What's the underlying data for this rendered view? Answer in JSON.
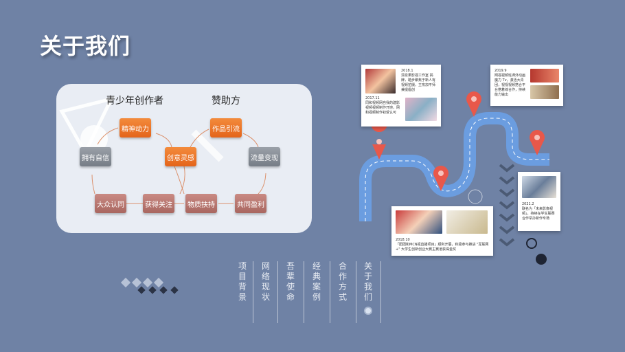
{
  "title": "关于我们",
  "flow": {
    "left_heading": "青少年创作者",
    "right_heading": "赞助方",
    "nodes": {
      "jingshen": "精神动力",
      "yongyou": "拥有自信",
      "chuangyi": "创意灵感",
      "zuopin": "作品引流",
      "liuliang": "流量变现",
      "dazhong": "大众认同",
      "huode": "获得关注",
      "wuzhi": "物质扶持",
      "gongtong": "共同盈利"
    }
  },
  "timeline": {
    "card1": {
      "date_a": "2018.1",
      "text_a": "漂泉果影视工作室 揭牌，踏步聚焦于新人有视频拍摄，主攻加平师兼提倡创",
      "date_b": "2017.11",
      "text_b": "同和视频网自我的建影视频视频制作开辦，网和视频制作初受认可"
    },
    "card2": {
      "date": "2019.9",
      "text": "网视视频班课外动画魔力 Tv，激活大青团，视视视频搭合平台搭着综合作，持续能力输出"
    },
    "card3": {
      "date": "2021.2",
      "text": "联名为「未来影像视频」，持续在学生联赛合作举办新作专场"
    },
    "card4": {
      "date": "2018.10",
      "text": "「团团和MCN视直播项目」顺利开展，积极参与推进 \"互联网+\" 大学生创新创业大赛主赛道获得金奖"
    }
  },
  "nav": [
    {
      "label": "项目背景"
    },
    {
      "label": "网络现状"
    },
    {
      "label": "吾辈使命"
    },
    {
      "label": "经典案例"
    },
    {
      "label": "合作方式"
    },
    {
      "label": "关于我们"
    }
  ],
  "colors": {
    "background": "#6f82a5",
    "orange": "#e4641a",
    "road": "#6b9de0",
    "pin": "#e8584a"
  }
}
